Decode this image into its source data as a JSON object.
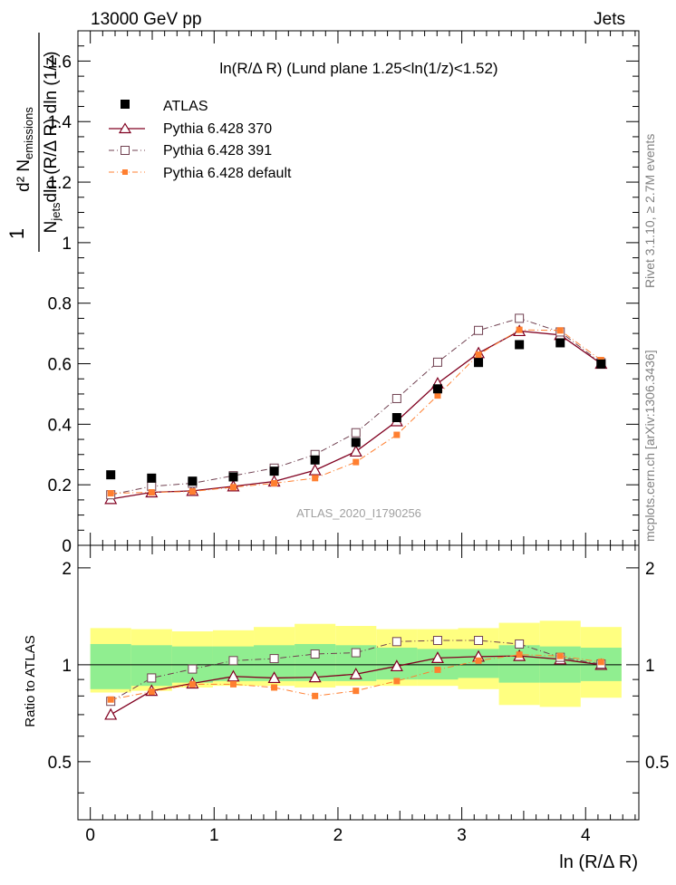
{
  "header": {
    "left": "13000 GeV pp",
    "right": "Jets"
  },
  "plot_title": "ln(R/Δ R) (Lund plane 1.25<ln(1/z)<1.52)",
  "side_text": {
    "top": "Rivet 3.1.10, ≥ 2.7M events",
    "bottom": "mcplots.cern.ch [arXiv:1306.3436]"
  },
  "analysis_label": "ATLAS_2020_I1790256",
  "colors": {
    "atlas": "#000000",
    "p370": "#800020",
    "p391": "#704050",
    "pdef": "#ff7f30",
    "band_inner": "#90ee90",
    "band_outer": "#ffff80"
  },
  "chart_data": [
    {
      "type": "scatter",
      "panel": "main",
      "ylabel": {
        "pre": "1",
        "frac_top": "d² N",
        "frac_top_sub": "emissions",
        "frac_bottom_pre": "N",
        "frac_bottom_sub": "jets",
        "frac_bottom_post": "dln (R/Δ R) dln (1/z)"
      },
      "xlim": [
        -0.1,
        4.43
      ],
      "ylim": [
        0,
        1.7
      ],
      "yticks": [
        0,
        0.2,
        0.4,
        0.6,
        0.8,
        1,
        1.2,
        1.4,
        1.6
      ],
      "ytick_labels": [
        "0",
        "0.2",
        "0.4",
        "0.6",
        "0.8",
        "1",
        "1.2",
        "1.4",
        "1.6"
      ],
      "x": [
        0.165,
        0.495,
        0.825,
        1.155,
        1.485,
        1.815,
        2.145,
        2.475,
        2.805,
        3.135,
        3.465,
        3.795,
        4.125
      ],
      "series": [
        {
          "name": "ATLAS",
          "key": "atlas",
          "marker": "filled-square",
          "values": [
            0.233,
            0.222,
            0.212,
            0.226,
            0.245,
            0.282,
            0.34,
            0.422,
            0.517,
            0.604,
            0.663,
            0.669,
            0.599
          ]
        },
        {
          "name": "Pythia 6.428 370",
          "key": "p370",
          "marker": "open-triangle",
          "line": "solid",
          "values": [
            0.153,
            0.175,
            0.18,
            0.195,
            0.211,
            0.248,
            0.31,
            0.41,
            0.535,
            0.635,
            0.708,
            0.695,
            0.6
          ]
        },
        {
          "name": "Pythia 6.428 391",
          "key": "p391",
          "marker": "open-square",
          "line": "dashdot",
          "values": [
            0.167,
            0.195,
            0.205,
            0.23,
            0.255,
            0.3,
            0.372,
            0.485,
            0.605,
            0.71,
            0.75,
            0.705,
            0.603
          ]
        },
        {
          "name": "Pythia 6.428 default",
          "key": "pdef",
          "marker": "small-filled-square",
          "line": "dashdot",
          "values": [
            0.172,
            0.175,
            0.178,
            0.192,
            0.205,
            0.222,
            0.275,
            0.365,
            0.495,
            0.63,
            0.712,
            0.71,
            0.612
          ]
        }
      ]
    },
    {
      "type": "scatter",
      "panel": "ratio",
      "ylabel": "Ratio to ATLAS",
      "xlabel": "ln (R/Δ R)",
      "xlim": [
        -0.1,
        4.43
      ],
      "ylim": [
        0.33,
        2.35
      ],
      "yticks": [
        0.5,
        1,
        2
      ],
      "ytick_labels": [
        "0.5",
        "1",
        "2"
      ],
      "xticks": [
        0,
        1,
        2,
        3,
        4
      ],
      "xtick_labels": [
        "0",
        "1",
        "2",
        "3",
        "4"
      ],
      "bins": [
        [
          0.0,
          0.33
        ],
        [
          0.33,
          0.66
        ],
        [
          0.66,
          0.99
        ],
        [
          0.99,
          1.32
        ],
        [
          1.32,
          1.65
        ],
        [
          1.65,
          1.98
        ],
        [
          1.98,
          2.31
        ],
        [
          2.31,
          2.64
        ],
        [
          2.64,
          2.97
        ],
        [
          2.97,
          3.3
        ],
        [
          3.3,
          3.63
        ],
        [
          3.63,
          3.96
        ],
        [
          3.96,
          4.29
        ]
      ],
      "band_inner": [
        [
          0.84,
          1.16
        ],
        [
          0.86,
          1.15
        ],
        [
          0.88,
          1.14
        ],
        [
          0.89,
          1.14
        ],
        [
          0.89,
          1.15
        ],
        [
          0.89,
          1.16
        ],
        [
          0.89,
          1.15
        ],
        [
          0.9,
          1.13
        ],
        [
          0.9,
          1.12
        ],
        [
          0.91,
          1.12
        ],
        [
          0.88,
          1.15
        ],
        [
          0.88,
          1.14
        ],
        [
          0.89,
          1.13
        ]
      ],
      "band_outer": [
        [
          0.82,
          1.3
        ],
        [
          0.83,
          1.29
        ],
        [
          0.85,
          1.27
        ],
        [
          0.86,
          1.28
        ],
        [
          0.86,
          1.31
        ],
        [
          0.85,
          1.34
        ],
        [
          0.86,
          1.32
        ],
        [
          0.86,
          1.29
        ],
        [
          0.86,
          1.29
        ],
        [
          0.84,
          1.3
        ],
        [
          0.75,
          1.35
        ],
        [
          0.74,
          1.37
        ],
        [
          0.79,
          1.31
        ]
      ],
      "x": [
        0.165,
        0.495,
        0.825,
        1.155,
        1.485,
        1.815,
        2.145,
        2.475,
        2.805,
        3.135,
        3.465,
        3.795,
        4.125
      ],
      "series": [
        {
          "name": "Pythia 6.428 370",
          "key": "p370",
          "marker": "open-triangle",
          "line": "solid",
          "values": [
            0.7,
            0.83,
            0.875,
            0.92,
            0.91,
            0.915,
            0.935,
            0.99,
            1.05,
            1.06,
            1.065,
            1.04,
            1.0
          ]
        },
        {
          "name": "Pythia 6.428 391",
          "key": "p391",
          "marker": "open-square",
          "line": "dashdot",
          "values": [
            0.77,
            0.91,
            0.97,
            1.03,
            1.045,
            1.08,
            1.09,
            1.18,
            1.19,
            1.19,
            1.16,
            1.055,
            1.005
          ]
        },
        {
          "name": "Pythia 6.428 default",
          "key": "pdef",
          "marker": "small-filled-square",
          "line": "dashdot",
          "values": [
            0.78,
            0.825,
            0.87,
            0.87,
            0.85,
            0.8,
            0.83,
            0.89,
            0.965,
            1.03,
            1.075,
            1.065,
            1.02
          ]
        }
      ]
    }
  ]
}
